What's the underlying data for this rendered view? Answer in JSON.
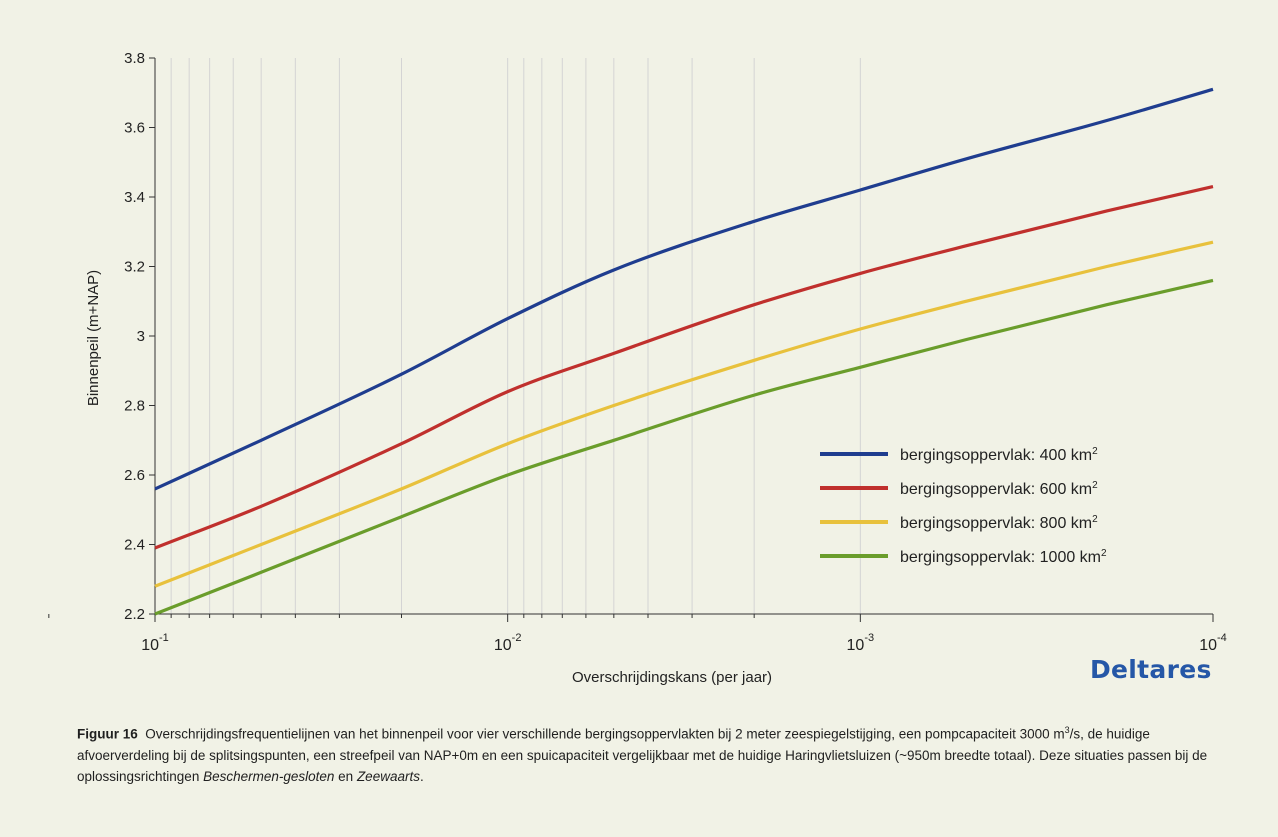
{
  "chart_data": {
    "type": "line",
    "title": "",
    "xlabel": "Overschrijdingskans (per jaar)",
    "ylabel": "Binnenpeil (m+NAP)",
    "x_scale": "log-reversed",
    "xlim": [
      0.1,
      0.0001
    ],
    "ylim": [
      2.2,
      3.8
    ],
    "x_ticks": [
      {
        "value": 0.1,
        "base": "10",
        "exp": "-1"
      },
      {
        "value": 0.01,
        "base": "10",
        "exp": "-2"
      },
      {
        "value": 0.001,
        "base": "10",
        "exp": "-3"
      },
      {
        "value": 0.0001,
        "base": "10",
        "exp": "-4"
      }
    ],
    "y_ticks": [
      "2.2",
      "2.4",
      "2.6",
      "2.8",
      "3",
      "3.2",
      "3.4",
      "3.6",
      "3.8"
    ],
    "grid": "x-minor-vertical",
    "legend_position": "lower-right",
    "series": [
      {
        "name": "bergingsoppervlak: 400 km",
        "sup": "2",
        "color": "#1f3d8f",
        "x": [
          0.1,
          0.05,
          0.02,
          0.01,
          0.005,
          0.002,
          0.001,
          0.0005,
          0.0002,
          0.0001
        ],
        "y": [
          2.56,
          2.7,
          2.89,
          3.05,
          3.19,
          3.33,
          3.42,
          3.51,
          3.62,
          3.71
        ]
      },
      {
        "name": "bergingsoppervlak: 600 km",
        "sup": "2",
        "color": "#c0302d",
        "x": [
          0.1,
          0.05,
          0.02,
          0.01,
          0.005,
          0.002,
          0.001,
          0.0005,
          0.0002,
          0.0001
        ],
        "y": [
          2.39,
          2.51,
          2.69,
          2.84,
          2.95,
          3.09,
          3.18,
          3.26,
          3.36,
          3.43
        ]
      },
      {
        "name": "bergingsoppervlak: 800 km",
        "sup": "2",
        "color": "#e8c13c",
        "x": [
          0.1,
          0.05,
          0.02,
          0.01,
          0.005,
          0.002,
          0.001,
          0.0005,
          0.0002,
          0.0001
        ],
        "y": [
          2.28,
          2.4,
          2.56,
          2.69,
          2.8,
          2.93,
          3.02,
          3.1,
          3.2,
          3.27
        ]
      },
      {
        "name": "bergingsoppervlak: 1000 km",
        "sup": "2",
        "color": "#6a9d2b",
        "x": [
          0.1,
          0.05,
          0.02,
          0.01,
          0.005,
          0.002,
          0.001,
          0.0005,
          0.0002,
          0.0001
        ],
        "y": [
          2.2,
          2.32,
          2.48,
          2.6,
          2.7,
          2.83,
          2.91,
          2.99,
          3.09,
          3.16
        ]
      }
    ]
  },
  "logo": "Deltares",
  "caption": {
    "label": "Figuur 16",
    "line1": "Overschrijdingsfrequentielijnen van het binnenpeil voor vier verschillende bergingsoppervlakten bij 2 meter zeespiegelstijging, een",
    "line2a": "pompcapaciteit 3000 m",
    "line2sup": "3",
    "line2b": "/s, de huidige afvoerverdeling bij de splitsingspunten, een streefpeil van NAP+0m en een spuicapaciteit vergelijkbaar met",
    "line3a": "de huidige Haringvlietsluizen (~950m breedte totaal). Deze situaties passen bij de oplossingsrichtingen ",
    "line3i1": "Beschermen-gesloten",
    "line3b": " en ",
    "line3i2": "Zeewaarts",
    "line3c": "."
  }
}
